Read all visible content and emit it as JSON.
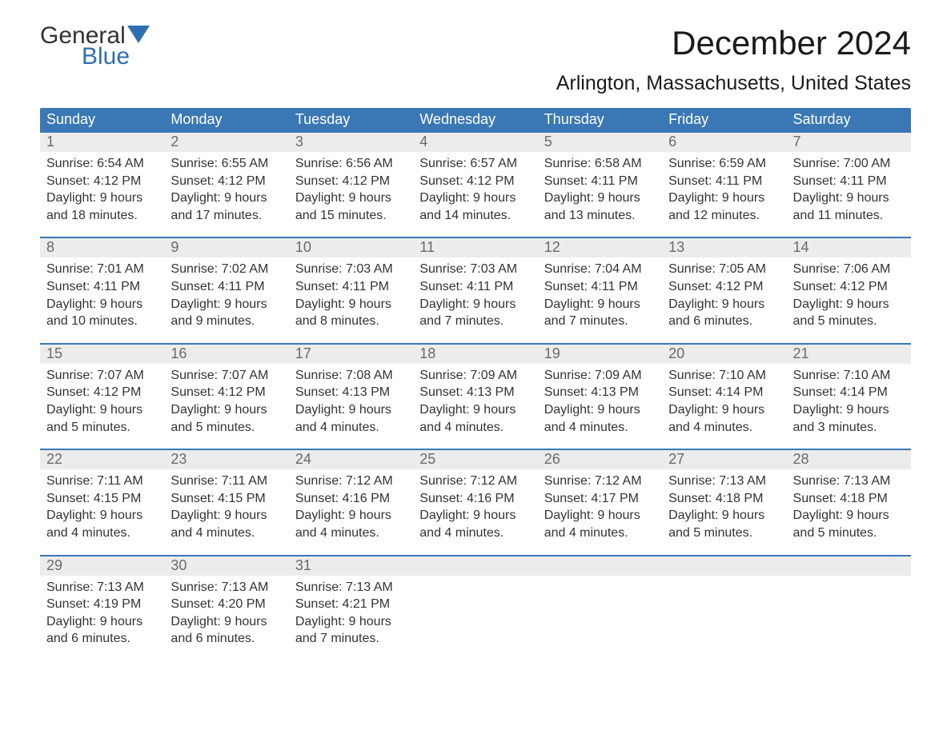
{
  "brand": {
    "name_top": "General",
    "name_bottom": "Blue",
    "flag_color": "#2f6fb0"
  },
  "title": "December 2024",
  "subtitle": "Arlington, Massachusetts, United States",
  "layout": {
    "header_bg": "#3a78b5",
    "header_text_color": "#ffffff",
    "daynum_bg": "#ececec",
    "daynum_color": "#6a6a6a",
    "week_border_color": "#3a78b5",
    "body_text_color": "#333333",
    "page_bg": "#ffffff",
    "header_fontsize": 18,
    "body_fontsize": 16,
    "title_fontsize": 42,
    "subtitle_fontsize": 25
  },
  "day_headers": [
    "Sunday",
    "Monday",
    "Tuesday",
    "Wednesday",
    "Thursday",
    "Friday",
    "Saturday"
  ],
  "weeks": [
    [
      {
        "n": "1",
        "sunrise": "Sunrise: 6:54 AM",
        "sunset": "Sunset: 4:12 PM",
        "daylight": "Daylight: 9 hours and 18 minutes."
      },
      {
        "n": "2",
        "sunrise": "Sunrise: 6:55 AM",
        "sunset": "Sunset: 4:12 PM",
        "daylight": "Daylight: 9 hours and 17 minutes."
      },
      {
        "n": "3",
        "sunrise": "Sunrise: 6:56 AM",
        "sunset": "Sunset: 4:12 PM",
        "daylight": "Daylight: 9 hours and 15 minutes."
      },
      {
        "n": "4",
        "sunrise": "Sunrise: 6:57 AM",
        "sunset": "Sunset: 4:12 PM",
        "daylight": "Daylight: 9 hours and 14 minutes."
      },
      {
        "n": "5",
        "sunrise": "Sunrise: 6:58 AM",
        "sunset": "Sunset: 4:11 PM",
        "daylight": "Daylight: 9 hours and 13 minutes."
      },
      {
        "n": "6",
        "sunrise": "Sunrise: 6:59 AM",
        "sunset": "Sunset: 4:11 PM",
        "daylight": "Daylight: 9 hours and 12 minutes."
      },
      {
        "n": "7",
        "sunrise": "Sunrise: 7:00 AM",
        "sunset": "Sunset: 4:11 PM",
        "daylight": "Daylight: 9 hours and 11 minutes."
      }
    ],
    [
      {
        "n": "8",
        "sunrise": "Sunrise: 7:01 AM",
        "sunset": "Sunset: 4:11 PM",
        "daylight": "Daylight: 9 hours and 10 minutes."
      },
      {
        "n": "9",
        "sunrise": "Sunrise: 7:02 AM",
        "sunset": "Sunset: 4:11 PM",
        "daylight": "Daylight: 9 hours and 9 minutes."
      },
      {
        "n": "10",
        "sunrise": "Sunrise: 7:03 AM",
        "sunset": "Sunset: 4:11 PM",
        "daylight": "Daylight: 9 hours and 8 minutes."
      },
      {
        "n": "11",
        "sunrise": "Sunrise: 7:03 AM",
        "sunset": "Sunset: 4:11 PM",
        "daylight": "Daylight: 9 hours and 7 minutes."
      },
      {
        "n": "12",
        "sunrise": "Sunrise: 7:04 AM",
        "sunset": "Sunset: 4:11 PM",
        "daylight": "Daylight: 9 hours and 7 minutes."
      },
      {
        "n": "13",
        "sunrise": "Sunrise: 7:05 AM",
        "sunset": "Sunset: 4:12 PM",
        "daylight": "Daylight: 9 hours and 6 minutes."
      },
      {
        "n": "14",
        "sunrise": "Sunrise: 7:06 AM",
        "sunset": "Sunset: 4:12 PM",
        "daylight": "Daylight: 9 hours and 5 minutes."
      }
    ],
    [
      {
        "n": "15",
        "sunrise": "Sunrise: 7:07 AM",
        "sunset": "Sunset: 4:12 PM",
        "daylight": "Daylight: 9 hours and 5 minutes."
      },
      {
        "n": "16",
        "sunrise": "Sunrise: 7:07 AM",
        "sunset": "Sunset: 4:12 PM",
        "daylight": "Daylight: 9 hours and 5 minutes."
      },
      {
        "n": "17",
        "sunrise": "Sunrise: 7:08 AM",
        "sunset": "Sunset: 4:13 PM",
        "daylight": "Daylight: 9 hours and 4 minutes."
      },
      {
        "n": "18",
        "sunrise": "Sunrise: 7:09 AM",
        "sunset": "Sunset: 4:13 PM",
        "daylight": "Daylight: 9 hours and 4 minutes."
      },
      {
        "n": "19",
        "sunrise": "Sunrise: 7:09 AM",
        "sunset": "Sunset: 4:13 PM",
        "daylight": "Daylight: 9 hours and 4 minutes."
      },
      {
        "n": "20",
        "sunrise": "Sunrise: 7:10 AM",
        "sunset": "Sunset: 4:14 PM",
        "daylight": "Daylight: 9 hours and 4 minutes."
      },
      {
        "n": "21",
        "sunrise": "Sunrise: 7:10 AM",
        "sunset": "Sunset: 4:14 PM",
        "daylight": "Daylight: 9 hours and 3 minutes."
      }
    ],
    [
      {
        "n": "22",
        "sunrise": "Sunrise: 7:11 AM",
        "sunset": "Sunset: 4:15 PM",
        "daylight": "Daylight: 9 hours and 4 minutes."
      },
      {
        "n": "23",
        "sunrise": "Sunrise: 7:11 AM",
        "sunset": "Sunset: 4:15 PM",
        "daylight": "Daylight: 9 hours and 4 minutes."
      },
      {
        "n": "24",
        "sunrise": "Sunrise: 7:12 AM",
        "sunset": "Sunset: 4:16 PM",
        "daylight": "Daylight: 9 hours and 4 minutes."
      },
      {
        "n": "25",
        "sunrise": "Sunrise: 7:12 AM",
        "sunset": "Sunset: 4:16 PM",
        "daylight": "Daylight: 9 hours and 4 minutes."
      },
      {
        "n": "26",
        "sunrise": "Sunrise: 7:12 AM",
        "sunset": "Sunset: 4:17 PM",
        "daylight": "Daylight: 9 hours and 4 minutes."
      },
      {
        "n": "27",
        "sunrise": "Sunrise: 7:13 AM",
        "sunset": "Sunset: 4:18 PM",
        "daylight": "Daylight: 9 hours and 5 minutes."
      },
      {
        "n": "28",
        "sunrise": "Sunrise: 7:13 AM",
        "sunset": "Sunset: 4:18 PM",
        "daylight": "Daylight: 9 hours and 5 minutes."
      }
    ],
    [
      {
        "n": "29",
        "sunrise": "Sunrise: 7:13 AM",
        "sunset": "Sunset: 4:19 PM",
        "daylight": "Daylight: 9 hours and 6 minutes."
      },
      {
        "n": "30",
        "sunrise": "Sunrise: 7:13 AM",
        "sunset": "Sunset: 4:20 PM",
        "daylight": "Daylight: 9 hours and 6 minutes."
      },
      {
        "n": "31",
        "sunrise": "Sunrise: 7:13 AM",
        "sunset": "Sunset: 4:21 PM",
        "daylight": "Daylight: 9 hours and 7 minutes."
      },
      {
        "n": "",
        "sunrise": "",
        "sunset": "",
        "daylight": ""
      },
      {
        "n": "",
        "sunrise": "",
        "sunset": "",
        "daylight": ""
      },
      {
        "n": "",
        "sunrise": "",
        "sunset": "",
        "daylight": ""
      },
      {
        "n": "",
        "sunrise": "",
        "sunset": "",
        "daylight": ""
      }
    ]
  ]
}
